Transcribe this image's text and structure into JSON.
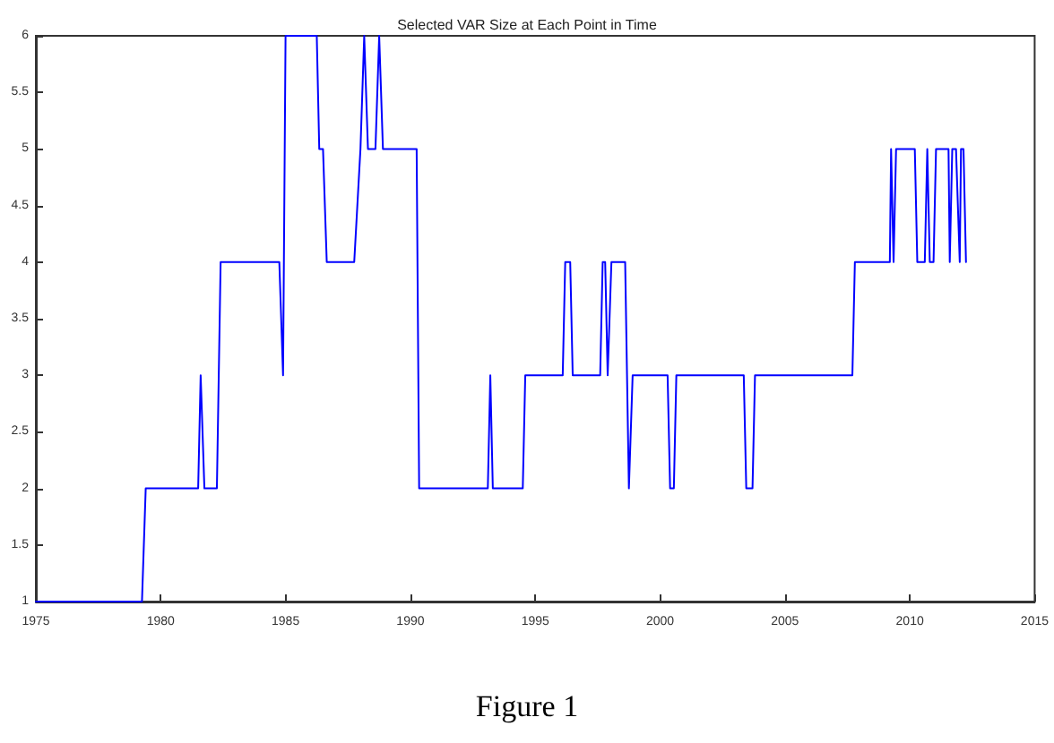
{
  "chart_data": {
    "type": "line",
    "title": "Selected VAR Size at Each Point in Time",
    "annotations": [
      "Figure 1"
    ],
    "x": [
      1975,
      1979.25,
      1979.4,
      1981.5,
      1981.6,
      1981.75,
      1982.25,
      1982.4,
      1984.75,
      1984.9,
      1985,
      1986.25,
      1986.35,
      1986.5,
      1986.65,
      1987.75,
      1988,
      1988.15,
      1988.3,
      1988.6,
      1988.75,
      1988.9,
      1990.25,
      1990.35,
      1993.1,
      1993.2,
      1993.3,
      1994.5,
      1994.6,
      1996.1,
      1996.2,
      1996.4,
      1996.5,
      1997.6,
      1997.7,
      1997.8,
      1997.9,
      1998.05,
      1998.6,
      1998.75,
      1998.9,
      2000.3,
      2000.4,
      2000.55,
      2000.65,
      2003.35,
      2003.45,
      2003.7,
      2003.8,
      2007.7,
      2007.8,
      2009.2,
      2009.25,
      2009.35,
      2009.45,
      2010.2,
      2010.3,
      2010.6,
      2010.7,
      2010.8,
      2010.95,
      2011.05,
      2011.55,
      2011.6,
      2011.7,
      2011.85,
      2012,
      2012.05,
      2012.15,
      2012.25
    ],
    "series": [
      {
        "color": "#0000ff",
        "values": [
          1,
          1,
          2,
          2,
          3,
          2,
          2,
          4,
          4,
          3,
          6,
          6,
          5,
          5,
          4,
          4,
          5,
          6,
          5,
          5,
          6,
          5,
          5,
          2,
          2,
          3,
          2,
          2,
          3,
          3,
          4,
          4,
          3,
          3,
          4,
          4,
          3,
          4,
          4,
          2,
          3,
          3,
          2,
          2,
          3,
          3,
          2,
          2,
          3,
          3,
          4,
          4,
          5,
          4,
          5,
          5,
          4,
          4,
          5,
          4,
          4,
          5,
          5,
          4,
          5,
          5,
          4,
          5,
          5,
          4
        ]
      }
    ],
    "xlim": [
      1975,
      2015
    ],
    "xticks": [
      1975,
      1980,
      1985,
      1990,
      1995,
      2000,
      2005,
      2010,
      2015
    ],
    "ylim": [
      1,
      6
    ],
    "yticks": [
      1,
      1.5,
      2,
      2.5,
      3,
      3.5,
      4,
      4.5,
      5,
      5.5,
      6
    ],
    "grid": false,
    "marker": "none",
    "line_style": "solid"
  }
}
